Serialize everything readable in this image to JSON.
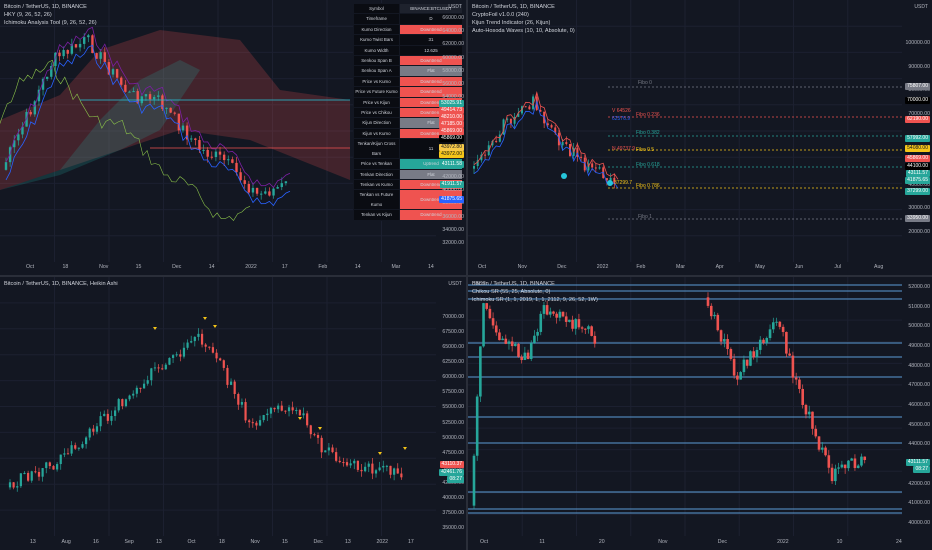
{
  "panes": {
    "top_left": {
      "legend": [
        "Bitcoin / TetherUS, 1D, BINANCE",
        "HKY (9, 26, 52, 26)",
        "Ichimoku Analysis Tool (9, 26, 52, 26)"
      ],
      "table": {
        "header": [
          "Symbol",
          "BINANCE:BTCUSDT"
        ],
        "rows": [
          {
            "label": "Timeframe",
            "value": "D",
            "status": "neutral"
          },
          {
            "label": "Kumo Direction",
            "value": "Downtrend",
            "status": "down"
          },
          {
            "label": "Kumo Twist Bars",
            "value": "31",
            "status": "neutral"
          },
          {
            "label": "Kumo Width",
            "value": "12.625",
            "status": "neutral"
          },
          {
            "label": "Senkou Span B",
            "value": "Downtrend",
            "status": "down"
          },
          {
            "label": "Senkou Span A",
            "value": "Flat",
            "status": "flat"
          },
          {
            "label": "Price vs Kumo",
            "value": "Downtrend",
            "status": "down"
          },
          {
            "label": "Price vs Future Kumo",
            "value": "Downtrend",
            "status": "down"
          },
          {
            "label": "Price vs Kijun",
            "value": "Downtrend",
            "status": "down"
          },
          {
            "label": "Price vs Chikou",
            "value": "Downtrend",
            "status": "down"
          },
          {
            "label": "Kijun Direction",
            "value": "Flat",
            "status": "flat"
          },
          {
            "label": "Kijun vs Kumo",
            "value": "Downtrend",
            "status": "down"
          },
          {
            "label": "Tenkan/Kijun Cross Bars",
            "value": "11",
            "status": "neutral"
          },
          {
            "label": "Price vs Tenkan",
            "value": "Uptrend",
            "status": "up"
          },
          {
            "label": "Tenkan Direction",
            "value": "Flat",
            "status": "flat"
          },
          {
            "label": "Tenkan vs Kumo",
            "value": "Downtrend",
            "status": "down"
          },
          {
            "label": "Tenkan vs Future Kumo",
            "value": "Downtrend",
            "status": "down"
          },
          {
            "label": "Tenkan vs Kijun",
            "value": "Downtrend",
            "status": "down"
          }
        ]
      },
      "price_axis": {
        "unit": "USDT",
        "ticks": [
          "66000.00",
          "64000.00",
          "62000.00",
          "60000.00",
          "58000.00",
          "56000.00",
          "54000.00",
          "52000.00",
          "50000.00",
          "48000.00",
          "46000.00",
          "44000.00",
          "42000.00",
          "40000.00",
          "38000.00",
          "36000.00",
          "34000.00",
          "32000.00"
        ]
      },
      "price_tags": [
        {
          "text": "53025.91",
          "color": "#26a69a"
        },
        {
          "text": "49414.73",
          "color": "#ef5350"
        },
        {
          "text": "48210.00",
          "color": "#ef5350"
        },
        {
          "text": "47185.00",
          "color": "#ef5350"
        },
        {
          "text": "45869.00",
          "color": "#ef5350"
        },
        {
          "text": "45869.00",
          "color": "#000000"
        },
        {
          "text": "43972.80",
          "color": "#f7c948"
        },
        {
          "text": "43972.00",
          "color": "#f5c518"
        },
        {
          "text": "43111.58",
          "color": "#26a69a"
        },
        {
          "text": "41911.57",
          "color": "#26a69a"
        },
        {
          "text": "41875.65",
          "color": "#2962ff"
        }
      ],
      "time_axis": [
        "Oct",
        "18",
        "Nov",
        "15",
        "Dec",
        "14",
        "2022",
        "17",
        "Feb",
        "14",
        "Mar",
        "14"
      ]
    },
    "top_right": {
      "legend": [
        "Bitcoin / TetherUS, 1D, BINANCE",
        "CryptoFoil v1.0.0 (240)",
        "Kijun Trend Indicator (26, Kijun)",
        "Auto-Hosoda Waves (10, 10, Absolute, 0)"
      ],
      "fib_levels": [
        {
          "label": "Fibo 0",
          "price": "75807.00",
          "color": "#787b86"
        },
        {
          "label": "Fibo 0.236",
          "price": "62190.00",
          "color": "#ef5350"
        },
        {
          "label": "Fibo 0.382",
          "price": "57992.00",
          "color": "#26a69a"
        },
        {
          "label": "Fibo 0.5",
          "price": "54080.00",
          "color": "#f5c518"
        },
        {
          "label": "Fibo 0.618",
          "price": "50169.00",
          "color": "#26a69a"
        },
        {
          "label": "Fibo 0.786",
          "price": "44600.00",
          "color": "#f5c518"
        },
        {
          "label": "Fibo 1",
          "price": "33950.00",
          "color": "#787b86"
        }
      ],
      "annotations": [
        "V 64526",
        "62576.9",
        "N 49737.9",
        "37299.7"
      ],
      "price_axis": {
        "unit": "USDT",
        "ticks": [
          "100000.00",
          "90000.00",
          "80000.00",
          "70000.00",
          "60000.00",
          "50000.00",
          "40000.00",
          "30000.00",
          "20000.00"
        ]
      },
      "price_tags": [
        {
          "text": "75807.00",
          "color": "#787b86"
        },
        {
          "text": "70000.00",
          "color": "#000000"
        },
        {
          "text": "62190.00",
          "color": "#ef5350"
        },
        {
          "text": "57992.00",
          "color": "#26a69a"
        },
        {
          "text": "54080.00",
          "color": "#f5c518"
        },
        {
          "text": "45869.00",
          "color": "#ef5350"
        },
        {
          "text": "44100.00",
          "color": "#000000"
        },
        {
          "text": "43111.57",
          "color": "#26a69a"
        },
        {
          "text": "41875.65",
          "color": "#26a69a"
        },
        {
          "text": "37299.00",
          "color": "#26a69a"
        },
        {
          "text": "33950.00",
          "color": "#787b86"
        }
      ],
      "time_axis": [
        "Oct",
        "Nov",
        "Dec",
        "2022",
        "Feb",
        "Mar",
        "Apr",
        "May",
        "Jun",
        "Jul",
        "Aug"
      ]
    },
    "bottom_left": {
      "legend": [
        "Bitcoin / TetherUS, 1D, BINANCE, Heikin Ashi"
      ],
      "price_axis": {
        "unit": "USDT",
        "ticks": [
          "70000.00",
          "67500.00",
          "65000.00",
          "62500.00",
          "60000.00",
          "57500.00",
          "55000.00",
          "52500.00",
          "50000.00",
          "47500.00",
          "45000.00",
          "42500.00",
          "40000.00",
          "37500.00",
          "35000.00"
        ]
      },
      "price_tags": [
        {
          "text": "43110.37",
          "color": "#ef5350"
        },
        {
          "text": "42461.76",
          "color": "#26a69a"
        },
        {
          "text": "08:27",
          "color": "#26a69a"
        }
      ],
      "time_axis": [
        "13",
        "Aug",
        "16",
        "Sep",
        "13",
        "Oct",
        "18",
        "Nov",
        "15",
        "Dec",
        "13",
        "2022",
        "17"
      ]
    },
    "bottom_right": {
      "legend": [
        "Bitcoin / TetherUS, 1D, BINANCE",
        "Chikou SR (55, 25, Absolute, 0)",
        "Ichimoku SR (1, 1, 2019, 1, 1, 2112, 9, 26, 52, 1W)"
      ],
      "price_axis": {
        "unit": "USDT",
        "ticks": [
          "52000.00",
          "51000.00",
          "50000.00",
          "49000.00",
          "48000.00",
          "47000.00",
          "46000.00",
          "45000.00",
          "44000.00",
          "43000.00",
          "42000.00",
          "41000.00",
          "40000.00"
        ]
      },
      "price_tags": [
        {
          "text": "43111.57",
          "color": "#26a69a"
        },
        {
          "text": "08:27",
          "color": "#26a69a"
        }
      ],
      "time_axis": [
        "Oct",
        "11",
        "20",
        "Nov",
        "Dec",
        "2022",
        "10",
        "24"
      ]
    }
  }
}
